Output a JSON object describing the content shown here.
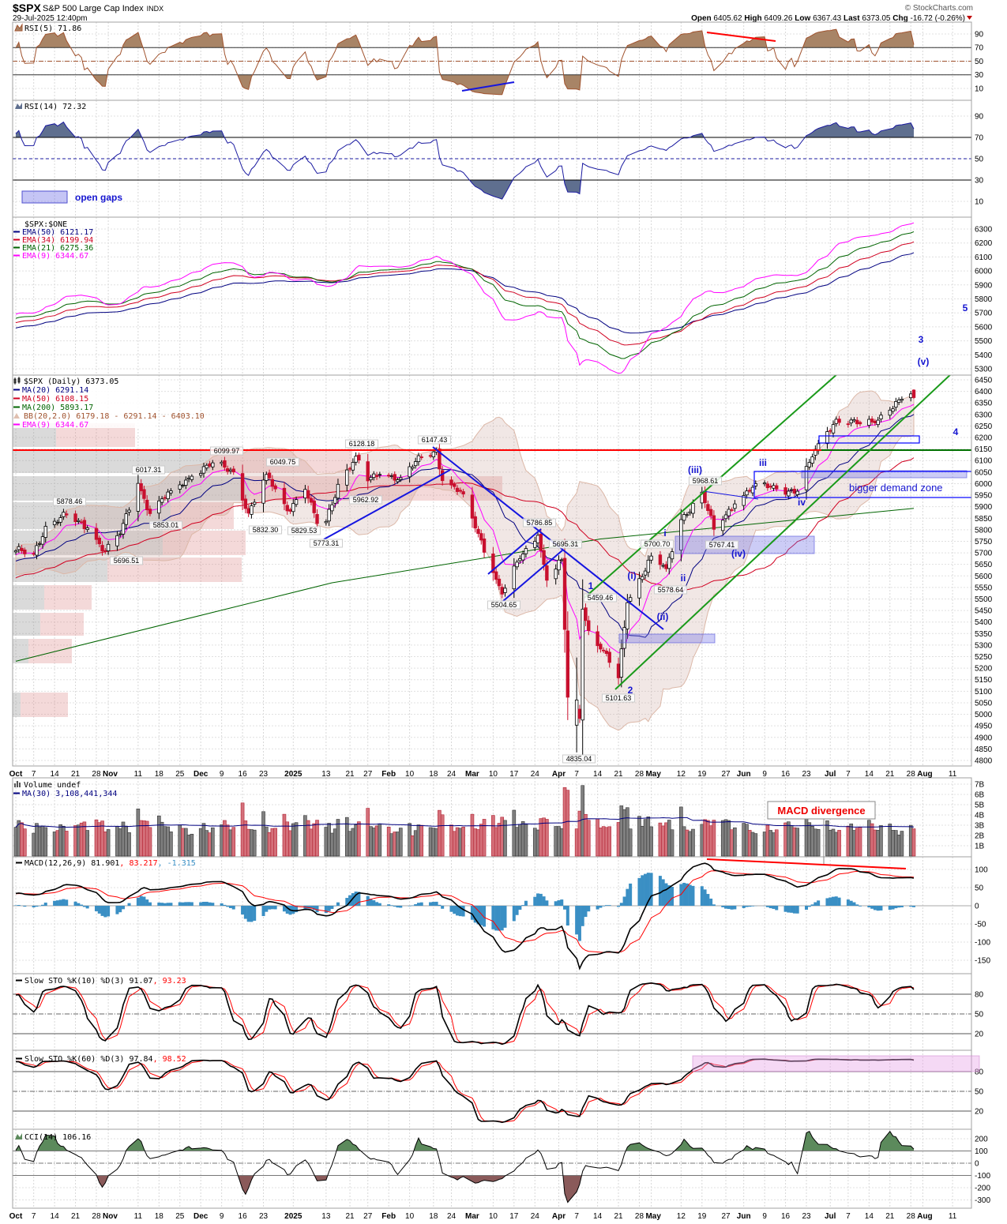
{
  "header": {
    "symbol": "$SPX",
    "name": "S&P 500 Large Cap Index",
    "exchange": "INDX",
    "datetime": "29-Jul-2025 12:40pm",
    "copyright": "© StockCharts.com",
    "open_label": "Open",
    "open": "6405.62",
    "high_label": "High",
    "high": "6409.26",
    "low_label": "Low",
    "low": "6367.43",
    "last_label": "Last",
    "last": "6373.05",
    "chg_label": "Chg",
    "chg": "-16.72 (-0.26%)"
  },
  "legends": {
    "rsi5": "RSI(5) 71.86",
    "rsi14": "RSI(14) 72.32",
    "ema_title": "$SPX:$ONE",
    "ema50": "EMA(50) 6121.17",
    "ema34": "EMA(34) 6199.94",
    "ema21": "EMA(21) 6275.36",
    "ema9": "EMA(9) 6344.67",
    "price_title": "$SPX (Daily) 6373.05",
    "ma20": "MA(20) 6291.14",
    "ma50": "MA(50) 6108.15",
    "ma200": "MA(200) 5893.17",
    "bb": "BB(20,2.0) 6179.18 - 6291.14 - 6403.10",
    "price_ema9": "EMA(9) 6344.67",
    "volume": "Volume undef",
    "vol_ma": "MA(30) 3,108,441,344",
    "macd_a": "MACD(12,26,9) 81.901",
    "macd_b": ", 83.217",
    "macd_c": ", -1.315",
    "sto10_a": "Slow STO %K(10) %D(3) 91.07",
    "sto10_b": ", 93.23",
    "sto60_a": "Slow STO %K(60) %D(3) 97.84",
    "sto60_b": ", 98.52",
    "cci": "CCI(14) 106.16"
  },
  "annotations": {
    "price_tags": [
      "5878.46",
      "6017.31",
      "6099.97",
      "5853.01",
      "5696.51",
      "6049.75",
      "5832.30",
      "5829.53",
      "5773.31",
      "6128.18",
      "5962.92",
      "6147.43",
      "5786.85",
      "5695.31",
      "5504.65",
      "5459.46",
      "4835.04",
      "5101.63",
      "5700.70",
      "5578.64",
      "5968.61",
      "5767.41"
    ],
    "wave_labels": [
      "1",
      "2",
      "3",
      "4",
      "5",
      "(i)",
      "(ii)",
      "(iii)",
      "(iv)",
      "(v)",
      "i",
      "ii",
      "iii",
      "iv"
    ],
    "open_gaps_label": "open gaps",
    "demand_zone_label": "bigger demand zone",
    "macd_divergence_label": "MACD divergence"
  },
  "colors": {
    "up_candle": "#ffffff",
    "down_candle": "#c8102e",
    "ma20": "#000080",
    "ma50": "#d00020",
    "ma200": "#006400",
    "ema9": "#ff00ff",
    "ema21": "#006400",
    "ema34": "#d00020",
    "ema50": "#000080",
    "rsi5": "#a0522d",
    "rsi5_fill": "#a88466",
    "rsi14": "#1a1aa0",
    "rsi14_fill": "#5f6f8f",
    "macd_hist": "#3a8fc4",
    "cci_pos": "#5c8a5c",
    "cci_neg": "#8a5a5a",
    "vol_up": "#808080",
    "vol_down": "#d4707a"
  },
  "chart_data": {
    "type": "candlestick",
    "title": "$SPX S&P 500 Large Cap Index (Daily)",
    "price_ylim": [
      4800,
      6450
    ],
    "price_ticks": [
      6450,
      6400,
      6350,
      6300,
      6250,
      6200,
      6150,
      6100,
      6050,
      6000,
      5950,
      5900,
      5850,
      5800,
      5750,
      5700,
      5650,
      5600,
      5550,
      5500,
      5450,
      5400,
      5350,
      5300,
      5250,
      5200,
      5150,
      5100,
      5050,
      5000,
      4950,
      4900,
      4850,
      4800
    ],
    "ema_ylim": [
      5250,
      6350
    ],
    "ema_ticks": [
      6300,
      6200,
      6100,
      6000,
      5900,
      5800,
      5700,
      5600,
      5500,
      5400,
      5300
    ],
    "rsi_ticks": [
      90,
      70,
      50,
      30,
      10
    ],
    "volume_ticks_billions": [
      7,
      6,
      5,
      4,
      3,
      2,
      1
    ],
    "macd_ticks": [
      100,
      50,
      0,
      -50,
      -100,
      -150
    ],
    "sto_ticks": [
      80,
      50,
      20
    ],
    "cci_ticks": [
      200,
      100,
      0,
      -100,
      -200,
      -300
    ],
    "last_bar": {
      "open": 6405.62,
      "high": 6409.26,
      "low": 6367.43,
      "close": 6373.05
    },
    "ma200_anchors": [
      [
        "2024-10-01",
        5230
      ],
      [
        "2025-01-15",
        5570
      ],
      [
        "2025-04-15",
        5760
      ],
      [
        "2025-07-29",
        5893
      ]
    ],
    "x_labels": [
      {
        "t": "Oct",
        "d": "2024-10-01",
        "b": true
      },
      {
        "t": "7",
        "d": "2024-10-07"
      },
      {
        "t": "14",
        "d": "2024-10-14"
      },
      {
        "t": "21",
        "d": "2024-10-21"
      },
      {
        "t": "28",
        "d": "2024-10-28"
      },
      {
        "t": "Nov",
        "d": "2024-11-01",
        "b": true
      },
      {
        "t": "11",
        "d": "2024-11-11"
      },
      {
        "t": "18",
        "d": "2024-11-18"
      },
      {
        "t": "25",
        "d": "2024-11-25"
      },
      {
        "t": "Dec",
        "d": "2024-12-02",
        "b": true
      },
      {
        "t": "9",
        "d": "2024-12-09"
      },
      {
        "t": "16",
        "d": "2024-12-16"
      },
      {
        "t": "23",
        "d": "2024-12-23"
      },
      {
        "t": "2025",
        "d": "2025-01-02",
        "b": true
      },
      {
        "t": "13",
        "d": "2025-01-13"
      },
      {
        "t": "21",
        "d": "2025-01-21"
      },
      {
        "t": "27",
        "d": "2025-01-27"
      },
      {
        "t": "Feb",
        "d": "2025-02-03",
        "b": true
      },
      {
        "t": "10",
        "d": "2025-02-10"
      },
      {
        "t": "18",
        "d": "2025-02-18"
      },
      {
        "t": "24",
        "d": "2025-02-24"
      },
      {
        "t": "Mar",
        "d": "2025-03-03",
        "b": true
      },
      {
        "t": "10",
        "d": "2025-03-10"
      },
      {
        "t": "17",
        "d": "2025-03-17"
      },
      {
        "t": "24",
        "d": "2025-03-24"
      },
      {
        "t": "Apr",
        "d": "2025-04-01",
        "b": true
      },
      {
        "t": "7",
        "d": "2025-04-07"
      },
      {
        "t": "14",
        "d": "2025-04-14"
      },
      {
        "t": "21",
        "d": "2025-04-21"
      },
      {
        "t": "28",
        "d": "2025-04-28"
      },
      {
        "t": "May",
        "d": "2025-05-02",
        "b": true
      },
      {
        "t": "12",
        "d": "2025-05-12"
      },
      {
        "t": "19",
        "d": "2025-05-19"
      },
      {
        "t": "27",
        "d": "2025-05-27"
      },
      {
        "t": "Jun",
        "d": "2025-06-02",
        "b": true
      },
      {
        "t": "9",
        "d": "2025-06-09"
      },
      {
        "t": "16",
        "d": "2025-06-16"
      },
      {
        "t": "23",
        "d": "2025-06-23"
      },
      {
        "t": "Jul",
        "d": "2025-07-01",
        "b": true
      },
      {
        "t": "7",
        "d": "2025-07-07"
      },
      {
        "t": "14",
        "d": "2025-07-14"
      },
      {
        "t": "21",
        "d": "2025-07-21"
      },
      {
        "t": "28",
        "d": "2025-07-28"
      },
      {
        "t": "Aug",
        "d": "2025-08-01",
        "b": true
      },
      {
        "t": "11",
        "d": "2025-08-11"
      }
    ],
    "close_anchors": [
      [
        "2024-10-01",
        5709
      ],
      [
        "2024-10-07",
        5696
      ],
      [
        "2024-10-11",
        5815
      ],
      [
        "2024-10-18",
        5864
      ],
      [
        "2024-10-25",
        5808
      ],
      [
        "2024-10-31",
        5705
      ],
      [
        "2024-11-05",
        5782
      ],
      [
        "2024-11-11",
        6001
      ],
      [
        "2024-11-15",
        5870
      ],
      [
        "2024-11-22",
        5969
      ],
      [
        "2024-11-29",
        6032
      ],
      [
        "2024-12-06",
        6090
      ],
      [
        "2024-12-13",
        6051
      ],
      [
        "2024-12-18",
        5872
      ],
      [
        "2024-12-24",
        6040
      ],
      [
        "2024-12-31",
        5882
      ],
      [
        "2025-01-06",
        5975
      ],
      [
        "2025-01-10",
        5827
      ],
      [
        "2025-01-13",
        5836
      ],
      [
        "2025-01-17",
        5997
      ],
      [
        "2025-01-23",
        6119
      ],
      [
        "2025-01-27",
        6012
      ],
      [
        "2025-01-31",
        6040
      ],
      [
        "2025-02-07",
        6026
      ],
      [
        "2025-02-14",
        6115
      ],
      [
        "2025-02-19",
        6144
      ],
      [
        "2025-02-21",
        6013
      ],
      [
        "2025-02-28",
        5955
      ],
      [
        "2025-03-03",
        5850
      ],
      [
        "2025-03-10",
        5614
      ],
      [
        "2025-03-13",
        5521
      ],
      [
        "2025-03-19",
        5675
      ],
      [
        "2025-03-25",
        5776
      ],
      [
        "2025-03-28",
        5581
      ],
      [
        "2025-04-02",
        5670
      ],
      [
        "2025-04-04",
        5074
      ],
      [
        "2025-04-08",
        4982
      ],
      [
        "2025-04-09",
        5456
      ],
      [
        "2025-04-11",
        5363
      ],
      [
        "2025-04-16",
        5275
      ],
      [
        "2025-04-21",
        5158
      ],
      [
        "2025-04-24",
        5484
      ],
      [
        "2025-05-02",
        5686
      ],
      [
        "2025-05-07",
        5631
      ],
      [
        "2025-05-12",
        5844
      ],
      [
        "2025-05-19",
        5963
      ],
      [
        "2025-05-23",
        5802
      ],
      [
        "2025-05-30",
        5912
      ],
      [
        "2025-06-06",
        6000
      ],
      [
        "2025-06-13",
        5977
      ],
      [
        "2025-06-20",
        5967
      ],
      [
        "2025-06-24",
        6092
      ],
      [
        "2025-06-27",
        6173
      ],
      [
        "2025-07-03",
        6279
      ],
      [
        "2025-07-11",
        6259
      ],
      [
        "2025-07-16",
        6263
      ],
      [
        "2025-07-18",
        6297
      ],
      [
        "2025-07-24",
        6363
      ],
      [
        "2025-07-28",
        6389
      ],
      [
        "2025-07-29",
        6373.05
      ]
    ]
  }
}
